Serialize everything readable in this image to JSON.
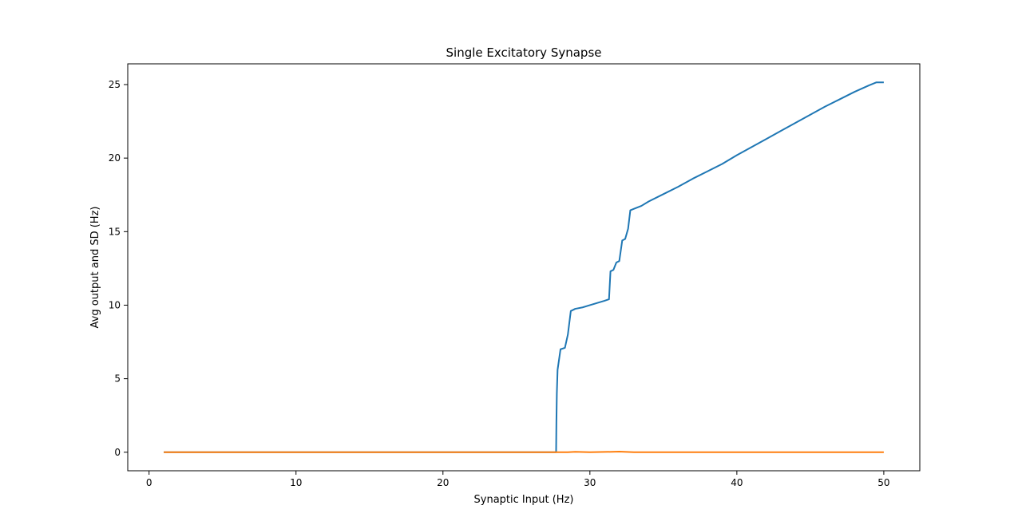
{
  "chart_data": {
    "type": "line",
    "title": "Single Excitatory Synapse",
    "xlabel": "Synaptic Input (Hz)",
    "ylabel": "Avg output and SD (Hz)",
    "xlim": [
      -1.45,
      52.45
    ],
    "ylim": [
      -1.26,
      26.41
    ],
    "xticks": [
      0,
      10,
      20,
      30,
      40,
      50
    ],
    "yticks": [
      0,
      5,
      10,
      15,
      20,
      25
    ],
    "grid": false,
    "legend": "none",
    "series": [
      {
        "color": "#1f77b4",
        "points": [
          [
            1,
            0
          ],
          [
            27.7,
            0
          ],
          [
            27.72,
            2.0
          ],
          [
            27.75,
            4.0
          ],
          [
            27.8,
            5.6
          ],
          [
            28.0,
            7.0
          ],
          [
            28.3,
            7.1
          ],
          [
            28.5,
            8.0
          ],
          [
            28.7,
            9.6
          ],
          [
            29.0,
            9.75
          ],
          [
            29.5,
            9.85
          ],
          [
            30.0,
            10.0
          ],
          [
            30.5,
            10.15
          ],
          [
            31.0,
            10.3
          ],
          [
            31.3,
            10.4
          ],
          [
            31.4,
            12.3
          ],
          [
            31.6,
            12.4
          ],
          [
            31.8,
            12.9
          ],
          [
            32.0,
            13.0
          ],
          [
            32.2,
            14.4
          ],
          [
            32.4,
            14.5
          ],
          [
            32.6,
            15.2
          ],
          [
            32.75,
            16.45
          ],
          [
            33.0,
            16.55
          ],
          [
            33.5,
            16.75
          ],
          [
            34.0,
            17.05
          ],
          [
            35.0,
            17.55
          ],
          [
            36.0,
            18.05
          ],
          [
            37.0,
            18.6
          ],
          [
            38.0,
            19.1
          ],
          [
            39.0,
            19.6
          ],
          [
            40.0,
            20.2
          ],
          [
            41.0,
            20.75
          ],
          [
            42.0,
            21.3
          ],
          [
            43.0,
            21.85
          ],
          [
            44.0,
            22.4
          ],
          [
            45.0,
            22.95
          ],
          [
            46.0,
            23.5
          ],
          [
            47.0,
            24.0
          ],
          [
            48.0,
            24.5
          ],
          [
            49.0,
            24.95
          ],
          [
            49.5,
            25.15
          ],
          [
            50.0,
            25.15
          ]
        ]
      },
      {
        "color": "#ff7f0e",
        "points": [
          [
            1,
            0
          ],
          [
            28.5,
            0
          ],
          [
            29.0,
            0.03
          ],
          [
            30.0,
            0.0
          ],
          [
            31.0,
            0.02
          ],
          [
            32.0,
            0.04
          ],
          [
            33.0,
            0.0
          ],
          [
            50.0,
            0.0
          ]
        ]
      }
    ]
  }
}
